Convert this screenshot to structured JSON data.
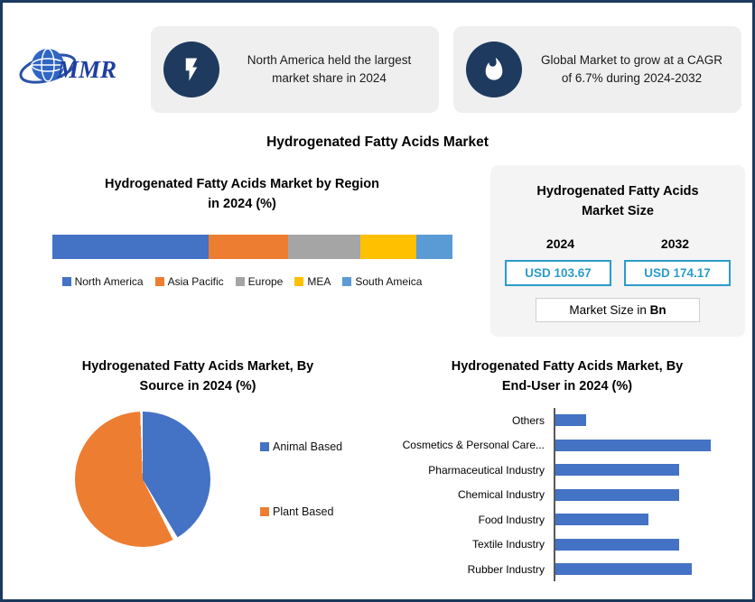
{
  "logo": {
    "text": "MMR"
  },
  "callouts": [
    {
      "icon": "lightning-icon",
      "text": "North America held the largest market share in 2024"
    },
    {
      "icon": "flame-icon",
      "text": "Global Market to grow at a CAGR of 6.7% during 2024-2032"
    }
  ],
  "main_title": "Hydrogenated Fatty Acids Market",
  "region_chart": {
    "title_line1": "Hydrogenated Fatty Acids Market by Region",
    "title_line2": "in 2024 (%)"
  },
  "market_size": {
    "title_line1": "Hydrogenated Fatty Acids",
    "title_line2": "Market Size",
    "year_left": "2024",
    "year_right": "2032",
    "value_left": "USD 103.67",
    "value_right": "USD 174.17",
    "footnote_prefix": "Market Size in ",
    "footnote_bold": "Bn"
  },
  "source_chart": {
    "title_line1": "Hydrogenated Fatty Acids Market, By",
    "title_line2": "Source in 2024 (%)"
  },
  "enduser_chart": {
    "title_line1": "Hydrogenated Fatty Acids Market, By",
    "title_line2": "End-User in 2024 (%)"
  },
  "colors": {
    "navy": "#1e3a5f",
    "teal": "#2b9cc9",
    "panel_gray": "#efefef",
    "blue": "#4472c4",
    "orange": "#ed7d31"
  },
  "chart_data": [
    {
      "type": "bar",
      "subtype": "stacked-horizontal",
      "title": "Hydrogenated Fatty Acids Market by Region in 2024 (%)",
      "categories": [
        "North America",
        "Asia Pacific",
        "Europe",
        "MEA",
        "South Ameica"
      ],
      "values": [
        39,
        20,
        18,
        14,
        9
      ],
      "colors": [
        "#4472c4",
        "#ed7d31",
        "#a5a5a5",
        "#ffc000",
        "#5b9bd5"
      ],
      "legend_position": "bottom"
    },
    {
      "type": "pie",
      "title": "Hydrogenated Fatty Acids Market, By Source in 2024 (%)",
      "categories": [
        "Animal Based",
        "Plant Based"
      ],
      "values": [
        42,
        58
      ],
      "colors": [
        "#4472c4",
        "#ed7d31"
      ],
      "legend_position": "right"
    },
    {
      "type": "bar",
      "subtype": "horizontal",
      "title": "Hydrogenated Fatty Acids Market, By End-User in 2024 (%)",
      "categories": [
        "Others",
        "Cosmetics & Personal Care...",
        "Pharmaceutical Industry",
        "Chemical Industry",
        "Food Industry",
        "Textile Industry",
        "Rubber Industry"
      ],
      "values": [
        5,
        25,
        20,
        20,
        15,
        20,
        22
      ],
      "color": "#4472c4",
      "xlim": [
        0,
        30
      ]
    }
  ]
}
